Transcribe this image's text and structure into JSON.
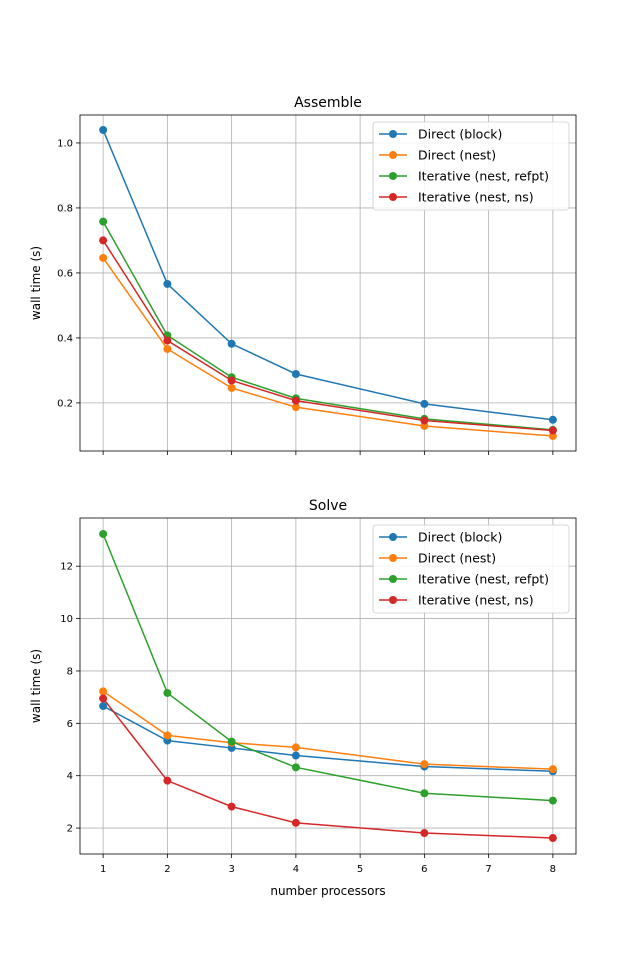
{
  "chart_data": [
    {
      "type": "line",
      "title": "Assemble",
      "xlabel": "",
      "ylabel": "wall time (s)",
      "x": [
        1,
        2,
        3,
        4,
        6,
        8
      ],
      "xlim": [
        0.64,
        8.36
      ],
      "ylim": [
        0.052,
        1.086
      ],
      "xticks": [
        1,
        2,
        3,
        4,
        5,
        6,
        7,
        8
      ],
      "xticklabels_shown": false,
      "yticks": [
        0.2,
        0.4,
        0.6,
        0.8,
        1.0
      ],
      "yticklabels": [
        "0.2",
        "0.4",
        "0.6",
        "0.8",
        "1.0"
      ],
      "grid": true,
      "legend": "upper-right",
      "series": [
        {
          "name": "Direct (block)",
          "color": "#1f77b4",
          "values": [
            1.04,
            0.566,
            0.382,
            0.289,
            0.197,
            0.148
          ]
        },
        {
          "name": "Direct (nest)",
          "color": "#ff7f0e",
          "values": [
            0.646,
            0.366,
            0.246,
            0.187,
            0.129,
            0.098
          ]
        },
        {
          "name": "Iterative (nest, refpt)",
          "color": "#2ca02c",
          "values": [
            0.758,
            0.408,
            0.279,
            0.214,
            0.151,
            0.117
          ]
        },
        {
          "name": "Iterative (nest, ns)",
          "color": "#d62728",
          "values": [
            0.7,
            0.392,
            0.269,
            0.207,
            0.146,
            0.115
          ]
        }
      ]
    },
    {
      "type": "line",
      "title": "Solve",
      "xlabel": "number processors",
      "ylabel": "wall time (s)",
      "x": [
        1,
        2,
        3,
        4,
        6,
        8
      ],
      "xlim": [
        0.64,
        8.36
      ],
      "ylim": [
        1.01,
        13.84
      ],
      "xticks": [
        1,
        2,
        3,
        4,
        5,
        6,
        7,
        8
      ],
      "xticklabels": [
        "1",
        "2",
        "3",
        "4",
        "5",
        "6",
        "7",
        "8"
      ],
      "yticks": [
        2,
        4,
        6,
        8,
        10,
        12
      ],
      "yticklabels": [
        "2",
        "4",
        "6",
        "8",
        "10",
        "12"
      ],
      "grid": true,
      "legend": "upper-right",
      "series": [
        {
          "name": "Direct (block)",
          "color": "#1f77b4",
          "values": [
            6.66,
            5.34,
            5.06,
            4.77,
            4.35,
            4.17
          ]
        },
        {
          "name": "Direct (nest)",
          "color": "#ff7f0e",
          "values": [
            7.22,
            5.54,
            5.26,
            5.08,
            4.44,
            4.25
          ]
        },
        {
          "name": "Iterative (nest, refpt)",
          "color": "#2ca02c",
          "values": [
            13.23,
            7.16,
            5.3,
            4.32,
            3.33,
            3.05
          ]
        },
        {
          "name": "Iterative (nest, ns)",
          "color": "#d62728",
          "values": [
            6.95,
            3.81,
            2.82,
            2.2,
            1.81,
            1.62
          ]
        }
      ]
    }
  ]
}
